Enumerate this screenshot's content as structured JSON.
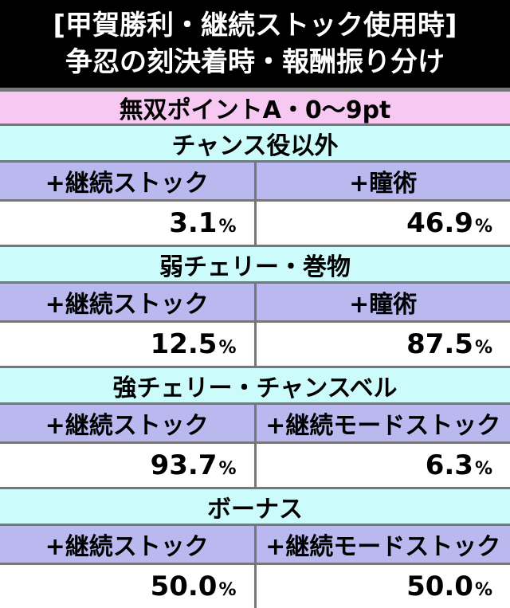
{
  "header": {
    "title_lines": [
      "[甲賀勝利・継続ストック使用時]",
      "争忍の刻決着時・報酬振り分け"
    ]
  },
  "table": {
    "caption": "無双ポイントA・0〜9pt",
    "sections": [
      {
        "label": "チャンス役以外",
        "columns": [
          "+継続ストック",
          "+瞳術"
        ],
        "values": [
          {
            "number": "3.1",
            "unit": "%"
          },
          {
            "number": "46.9",
            "unit": "%"
          }
        ]
      },
      {
        "label": "弱チェリー・巻物",
        "columns": [
          "+継続ストック",
          "+瞳術"
        ],
        "values": [
          {
            "number": "12.5",
            "unit": "%"
          },
          {
            "number": "87.5",
            "unit": "%"
          }
        ]
      },
      {
        "label": "強チェリー・チャンスベル",
        "columns": [
          "+継続ストック",
          "+継続モードストック"
        ],
        "values": [
          {
            "number": "93.7",
            "unit": "%"
          },
          {
            "number": "6.3",
            "unit": "%"
          }
        ]
      },
      {
        "label": "ボーナス",
        "columns": [
          "+継続ストック",
          "+継続モードストック"
        ],
        "values": [
          {
            "number": "50.0",
            "unit": "%"
          },
          {
            "number": "50.0",
            "unit": "%"
          }
        ]
      }
    ]
  }
}
